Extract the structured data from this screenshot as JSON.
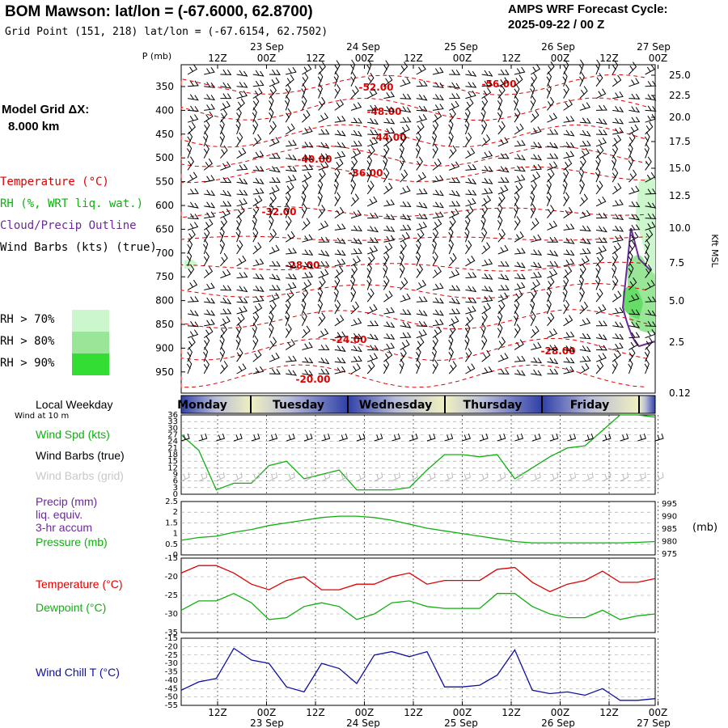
{
  "header": {
    "title": "BOM Mawson:  lat/lon = (-67.6000, 62.8700)",
    "subtitle": "Grid Point (151, 218) lat/lon = (-67.6154, 62.7502)",
    "cycle_line1": "AMPS WRF Forecast Cycle:",
    "cycle_line2": "2025-09-22 / 00  Z"
  },
  "left_panel": {
    "model_grid_line1": "Model Grid ΔX:",
    "model_grid_line2": "8.000 km",
    "temperature": "Temperature (°C)",
    "rh": "RH (%, WRT liq. wat.)",
    "cloud": "Cloud/Precip Outline",
    "wind_barbs": "Wind Barbs (kts) (true)",
    "rh70": "RH > 70%",
    "rh80": "RH > 80%",
    "rh90": "RH > 90%",
    "local_weekday": "Local Weekday",
    "wind_10m": "Wind at 10 m",
    "wind_spd": "Wind Spd (kts)",
    "wind_barbs_true": "Wind Barbs (true)",
    "wind_barbs_grid": "Wind Barbs (grid)",
    "precip_line1": "Precip (mm)",
    "precip_line2": "liq. equiv.",
    "precip_line3": "3-hr accum",
    "pressure": "Pressure (mb)",
    "temp2": "Temperature (°C)",
    "dewpoint": "Dewpoint (°C)",
    "windchill": "Wind Chill T (°C)"
  },
  "colors": {
    "temperature": "#e00000",
    "rh": "#10b010",
    "cloud": "#6a2a9a",
    "windchill": "#1010a0",
    "rh70": "#ccf7cc",
    "rh80": "#99e699",
    "rh90": "#33dd33"
  },
  "chart_data": [
    {
      "type": "line",
      "name": "time-height cross-section",
      "x_labels_top": [
        "12Z",
        "00Z",
        "12Z",
        "00Z",
        "12Z",
        "00Z",
        "12Z",
        "00Z",
        "12Z",
        "00Z"
      ],
      "date_labels_top": [
        "23 Sep",
        "24 Sep",
        "25 Sep",
        "26 Sep",
        "27 Sep"
      ],
      "y_label": "P (mb)",
      "pressure_ticks": [
        350,
        400,
        450,
        500,
        550,
        600,
        650,
        700,
        750,
        800,
        850,
        900,
        950
      ],
      "height_label": "Kft MSL",
      "height_ticks": [
        "25.0",
        "22.5",
        "20.0",
        "17.5",
        "15.0",
        "12.5",
        "10.0",
        "7.5",
        "5.0",
        "2.5",
        "0.12"
      ],
      "temperature_contours": [
        "-52.00",
        "-56.00",
        "-48.00",
        "-44.00",
        "-40.00",
        "-36.00",
        "-32.00",
        "-28.00",
        "-24.00",
        "-28.00",
        "-20.00"
      ]
    },
    {
      "type": "bar",
      "name": "weekday bar",
      "categories": [
        "Monday",
        "Tuesday",
        "Wednesday",
        "Thursday",
        "Friday"
      ]
    },
    {
      "type": "line",
      "name": "wind speed",
      "ylim": [
        0,
        36
      ],
      "y_ticks": [
        "36",
        "33",
        "30",
        "27",
        "24",
        "21",
        "18",
        "15",
        "12",
        "9",
        "6",
        "3",
        "0"
      ],
      "series": [
        {
          "name": "Wind Spd (kts)",
          "values": [
            27,
            20,
            2,
            5,
            5,
            13,
            15,
            7,
            9,
            11,
            2,
            2,
            2,
            3,
            11,
            18,
            18,
            17,
            18,
            7,
            12,
            17,
            21,
            22,
            29,
            36,
            36,
            35
          ]
        }
      ]
    },
    {
      "type": "line",
      "name": "pressure",
      "y_left_ticks": [
        "2.5",
        "2",
        "1.5",
        "1",
        "0.5",
        "0"
      ],
      "y_right_ticks": [
        "995",
        "990",
        "985",
        "980",
        "975"
      ],
      "y_right_unit": "(mb)",
      "series": [
        {
          "name": "Pressure (mb)",
          "values": [
            980.5,
            981.5,
            982,
            983.5,
            984.5,
            986,
            987,
            988,
            989,
            989.5,
            989.5,
            989,
            988,
            986.5,
            985,
            984,
            983,
            982,
            981,
            980,
            979.5,
            979.5,
            979.5,
            979.5,
            979.5,
            979.5,
            979.7,
            980
          ]
        }
      ]
    },
    {
      "type": "line",
      "name": "temperature and dewpoint",
      "ylim": [
        -35,
        -15
      ],
      "y_ticks": [
        "-15",
        "-20",
        "-25",
        "-30",
        "-35"
      ],
      "series": [
        {
          "name": "Temperature (°C)",
          "values": [
            -19,
            -17,
            -17,
            -19,
            -22,
            -23.5,
            -21,
            -20,
            -23.5,
            -23.5,
            -22,
            -22,
            -20,
            -19,
            -22,
            -21,
            -21,
            -21,
            -18,
            -17.5,
            -21.5,
            -24,
            -22,
            -21,
            -18.5,
            -21.5,
            -21.5,
            -20.5
          ]
        },
        {
          "name": "Dewpoint (°C)",
          "values": [
            -29,
            -26.5,
            -26.5,
            -24.5,
            -27,
            -31.5,
            -31,
            -28,
            -27,
            -28,
            -31.5,
            -30,
            -27,
            -26.5,
            -28,
            -28.5,
            -28.5,
            -28.5,
            -24.5,
            -24.5,
            -28,
            -30,
            -31,
            -31,
            -29,
            -31.5,
            -30.5,
            -30
          ]
        }
      ]
    },
    {
      "type": "line",
      "name": "wind chill",
      "ylim": [
        -55,
        -15
      ],
      "y_ticks": [
        "-15",
        "-20",
        "-25",
        "-30",
        "-35",
        "-40",
        "-45",
        "-50",
        "-55"
      ],
      "x_labels_bottom": [
        "12Z",
        "00Z",
        "12Z",
        "00Z",
        "12Z",
        "00Z",
        "12Z",
        "00Z",
        "12Z",
        "00Z"
      ],
      "date_labels_bottom": [
        "23 Sep",
        "24 Sep",
        "25 Sep",
        "26 Sep",
        "27 Sep"
      ],
      "series": [
        {
          "name": "Wind Chill T (°C)",
          "values": [
            -46,
            -41,
            -39,
            -21,
            -28,
            -30,
            -44,
            -47,
            -30,
            -33,
            -42,
            -25,
            -23,
            -26,
            -23,
            -44,
            -44,
            -43,
            -37,
            -22,
            -46,
            -48,
            -47,
            -49,
            -45,
            -52,
            -52,
            -51
          ]
        }
      ]
    }
  ]
}
